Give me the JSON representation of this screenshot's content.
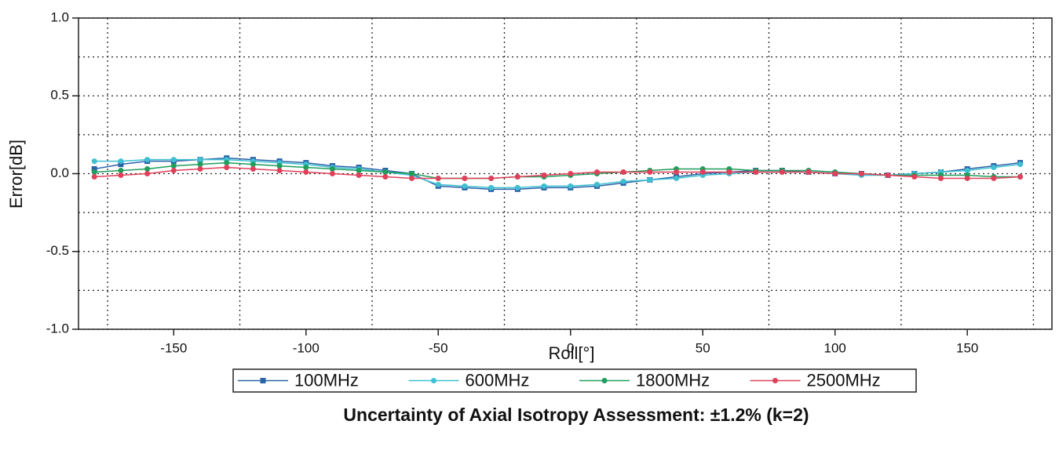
{
  "chart_data": {
    "type": "line",
    "x_label": "Roll[°]",
    "y_label": "Error[dB]",
    "caption": "Uncertainty of Axial Isotropy Assessment: ±1.2% (k=2)",
    "x": [
      -180,
      -170,
      -160,
      -150,
      -140,
      -130,
      -120,
      -110,
      -100,
      -90,
      -80,
      -70,
      -60,
      -50,
      -40,
      -30,
      -20,
      -10,
      0,
      10,
      20,
      30,
      40,
      50,
      60,
      70,
      80,
      90,
      100,
      110,
      120,
      130,
      140,
      150,
      160,
      170
    ],
    "series": [
      {
        "name": "100MHz",
        "color": "#2a62a8",
        "marker": "square",
        "values": [
          0.03,
          0.06,
          0.08,
          0.08,
          0.09,
          0.1,
          0.09,
          0.08,
          0.07,
          0.05,
          0.04,
          0.02,
          0,
          -0.08,
          -0.09,
          -0.1,
          -0.1,
          -0.09,
          -0.09,
          -0.08,
          -0.06,
          -0.04,
          -0.02,
          0,
          0.01,
          0.02,
          0.02,
          0.01,
          0,
          0,
          -0.01,
          0,
          0.01,
          0.03,
          0.05,
          0.07
        ]
      },
      {
        "name": "600MHz",
        "color": "#3fc0d2",
        "marker": "circle",
        "values": [
          0.08,
          0.08,
          0.09,
          0.09,
          0.09,
          0.09,
          0.08,
          0.07,
          0.06,
          0.04,
          0.03,
          0.01,
          -0.01,
          -0.07,
          -0.08,
          -0.09,
          -0.09,
          -0.08,
          -0.08,
          -0.07,
          -0.05,
          -0.04,
          -0.03,
          -0.01,
          0,
          0.01,
          0.01,
          0.01,
          0,
          -0.01,
          -0.01,
          0,
          0.01,
          0.02,
          0.04,
          0.06
        ]
      },
      {
        "name": "1800MHz",
        "color": "#1f9e5c",
        "marker": "circle",
        "values": [
          0.01,
          0.02,
          0.03,
          0.05,
          0.06,
          0.07,
          0.06,
          0.05,
          0.04,
          0.03,
          0.02,
          0.01,
          0,
          -0.03,
          -0.03,
          -0.03,
          -0.02,
          -0.02,
          -0.01,
          0,
          0.01,
          0.02,
          0.03,
          0.03,
          0.03,
          0.02,
          0.02,
          0.02,
          0.01,
          0,
          -0.01,
          -0.01,
          -0.01,
          -0.01,
          -0.02,
          -0.02
        ]
      },
      {
        "name": "2500MHz",
        "color": "#e0405a",
        "marker": "circle",
        "values": [
          -0.02,
          -0.01,
          0,
          0.02,
          0.03,
          0.04,
          0.03,
          0.02,
          0.01,
          0,
          -0.01,
          -0.02,
          -0.03,
          -0.03,
          -0.03,
          -0.03,
          -0.02,
          -0.01,
          0,
          0.01,
          0.01,
          0.01,
          0.01,
          0.01,
          0.01,
          0.01,
          0.01,
          0.01,
          0,
          0,
          -0.01,
          -0.02,
          -0.03,
          -0.03,
          -0.03,
          -0.02
        ]
      }
    ],
    "xlim": [
      -186,
      182
    ],
    "ylim": [
      -1,
      1
    ],
    "xticks": [
      -150,
      -100,
      -50,
      0,
      50,
      100,
      150
    ],
    "yticks": [
      {
        "value": -1,
        "label": "-1.0"
      },
      -0.5,
      {
        "value": 0,
        "label": "0.0"
      },
      0.5,
      {
        "value": 1,
        "label": "1.0"
      }
    ],
    "x_grid": [
      -175,
      -125,
      -75,
      -25,
      25,
      75,
      125,
      175
    ],
    "y_grid": [
      -0.75,
      -0.25,
      0.25,
      0.75
    ],
    "legend": "bottom"
  }
}
